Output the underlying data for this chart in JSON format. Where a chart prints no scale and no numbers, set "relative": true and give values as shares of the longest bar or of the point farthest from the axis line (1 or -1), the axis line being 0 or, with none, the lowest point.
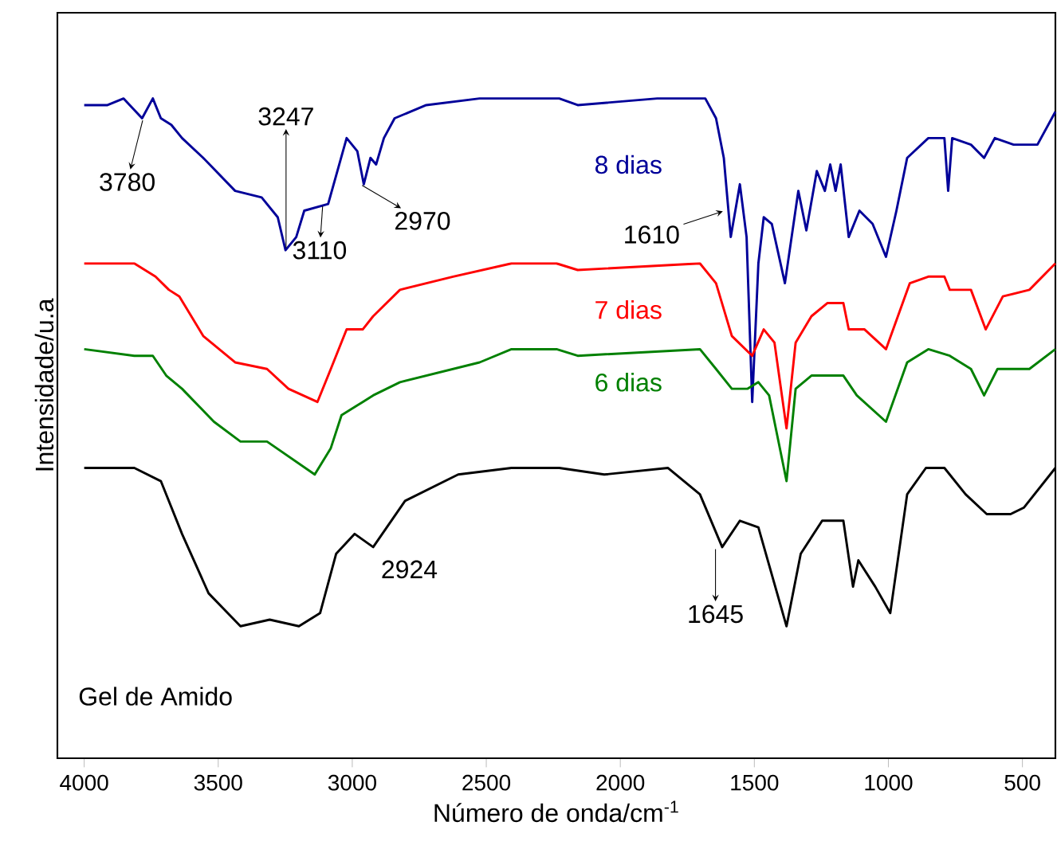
{
  "chart_data": {
    "type": "line",
    "relative": true,
    "xlabel": "Número de onda/cm$^{-1}$",
    "ylabel": "Intensidade/u.a",
    "xlim": [
      4100,
      377
    ],
    "xticks": [
      4000,
      3500,
      3000,
      2500,
      2000,
      1500,
      1000,
      500
    ],
    "tick_labels": "x",
    "marker": "none",
    "series": [
      {
        "name": "8 dias",
        "color": "#000099",
        "x": [
          4000,
          3913,
          3853,
          3784,
          3744,
          3714,
          3675,
          3635,
          3556,
          3437,
          3338,
          3278,
          3249,
          3209,
          3179,
          3090,
          3021,
          2981,
          2957,
          2932,
          2911,
          2882,
          2842,
          2724,
          2525,
          2357,
          2228,
          2159,
          1862,
          1683,
          1643,
          1614,
          1588,
          1554,
          1529,
          1508,
          1485,
          1465,
          1435,
          1386,
          1336,
          1306,
          1267,
          1237,
          1217,
          1197,
          1178,
          1148,
          1108,
          1059,
          1009,
          970,
          930,
          851,
          791,
          777,
          762,
          692,
          643,
          603,
          533,
          444,
          377
        ],
        "values": [
          0.99,
          0.99,
          1.0,
          0.97,
          1.0,
          0.97,
          0.96,
          0.94,
          0.91,
          0.86,
          0.85,
          0.82,
          0.77,
          0.79,
          0.83,
          0.84,
          0.94,
          0.92,
          0.87,
          0.91,
          0.9,
          0.94,
          0.97,
          0.99,
          1.0,
          1.0,
          1.0,
          0.99,
          1.0,
          1.0,
          0.97,
          0.91,
          0.79,
          0.87,
          0.79,
          0.54,
          0.75,
          0.82,
          0.81,
          0.72,
          0.86,
          0.8,
          0.89,
          0.86,
          0.9,
          0.86,
          0.9,
          0.79,
          0.83,
          0.81,
          0.76,
          0.83,
          0.91,
          0.94,
          0.94,
          0.86,
          0.94,
          0.93,
          0.91,
          0.94,
          0.93,
          0.93,
          0.98
        ]
      },
      {
        "name": "7 dias",
        "color": "#ff0000",
        "x": [
          4000,
          3913,
          3813,
          3734,
          3684,
          3645,
          3556,
          3437,
          3318,
          3238,
          3130,
          3080,
          3021,
          2961,
          2922,
          2822,
          2624,
          2406,
          2357,
          2238,
          2159,
          1703,
          1643,
          1584,
          1508,
          1465,
          1425,
          1380,
          1346,
          1287,
          1227,
          1168,
          1148,
          1089,
          1009,
          920,
          851,
          791,
          771,
          692,
          637,
          573,
          474,
          377
        ],
        "values": [
          0.75,
          0.75,
          0.75,
          0.73,
          0.71,
          0.7,
          0.64,
          0.6,
          0.59,
          0.56,
          0.54,
          0.59,
          0.65,
          0.65,
          0.67,
          0.71,
          0.73,
          0.75,
          0.75,
          0.75,
          0.74,
          0.75,
          0.72,
          0.64,
          0.61,
          0.65,
          0.63,
          0.5,
          0.63,
          0.67,
          0.69,
          0.69,
          0.65,
          0.65,
          0.62,
          0.72,
          0.73,
          0.73,
          0.71,
          0.71,
          0.65,
          0.7,
          0.71,
          0.75
        ]
      },
      {
        "name": "6 dias",
        "color": "#008000",
        "x": [
          4000,
          3813,
          3744,
          3694,
          3635,
          3516,
          3417,
          3318,
          3140,
          3080,
          3040,
          2961,
          2922,
          2822,
          2525,
          2406,
          2238,
          2159,
          1703,
          1643,
          1584,
          1525,
          1485,
          1445,
          1380,
          1346,
          1287,
          1168,
          1118,
          1009,
          930,
          851,
          771,
          692,
          643,
          593,
          474,
          377
        ],
        "values": [
          0.62,
          0.61,
          0.61,
          0.58,
          0.56,
          0.51,
          0.48,
          0.48,
          0.43,
          0.47,
          0.52,
          0.54,
          0.55,
          0.57,
          0.6,
          0.62,
          0.62,
          0.61,
          0.62,
          0.59,
          0.56,
          0.56,
          0.57,
          0.55,
          0.42,
          0.56,
          0.58,
          0.58,
          0.55,
          0.51,
          0.6,
          0.62,
          0.61,
          0.59,
          0.55,
          0.59,
          0.59,
          0.62
        ]
      },
      {
        "name": "Gel de Amido",
        "color": "#000000",
        "x": [
          4000,
          3813,
          3714,
          3635,
          3536,
          3417,
          3308,
          3199,
          3120,
          3060,
          2991,
          2922,
          2803,
          2605,
          2406,
          2228,
          2060,
          1822,
          1703,
          1620,
          1554,
          1485,
          1380,
          1327,
          1247,
          1168,
          1132,
          1112,
          1049,
          993,
          930,
          860,
          791,
          712,
          633,
          544,
          494,
          377
        ],
        "values": [
          0.44,
          0.44,
          0.42,
          0.34,
          0.25,
          0.2,
          0.21,
          0.2,
          0.22,
          0.31,
          0.34,
          0.32,
          0.39,
          0.43,
          0.44,
          0.44,
          0.43,
          0.44,
          0.4,
          0.32,
          0.36,
          0.35,
          0.2,
          0.31,
          0.36,
          0.36,
          0.26,
          0.3,
          0.26,
          0.22,
          0.4,
          0.44,
          0.44,
          0.4,
          0.37,
          0.37,
          0.38,
          0.44
        ]
      }
    ],
    "annotations": [
      {
        "text": "3780",
        "x": 3780,
        "y": 0.97
      },
      {
        "text": "3247",
        "x": 3247,
        "y": 0.77
      },
      {
        "text": "3110",
        "x": 3110,
        "y": 0.84
      },
      {
        "text": "2970",
        "x": 2970,
        "y": 0.87
      },
      {
        "text": "1610",
        "x": 1610,
        "y": 0.83
      },
      {
        "text": "2924",
        "x": 2924,
        "y": 0.32
      },
      {
        "text": "1645",
        "x": 1645,
        "y": 0.32
      }
    ]
  }
}
